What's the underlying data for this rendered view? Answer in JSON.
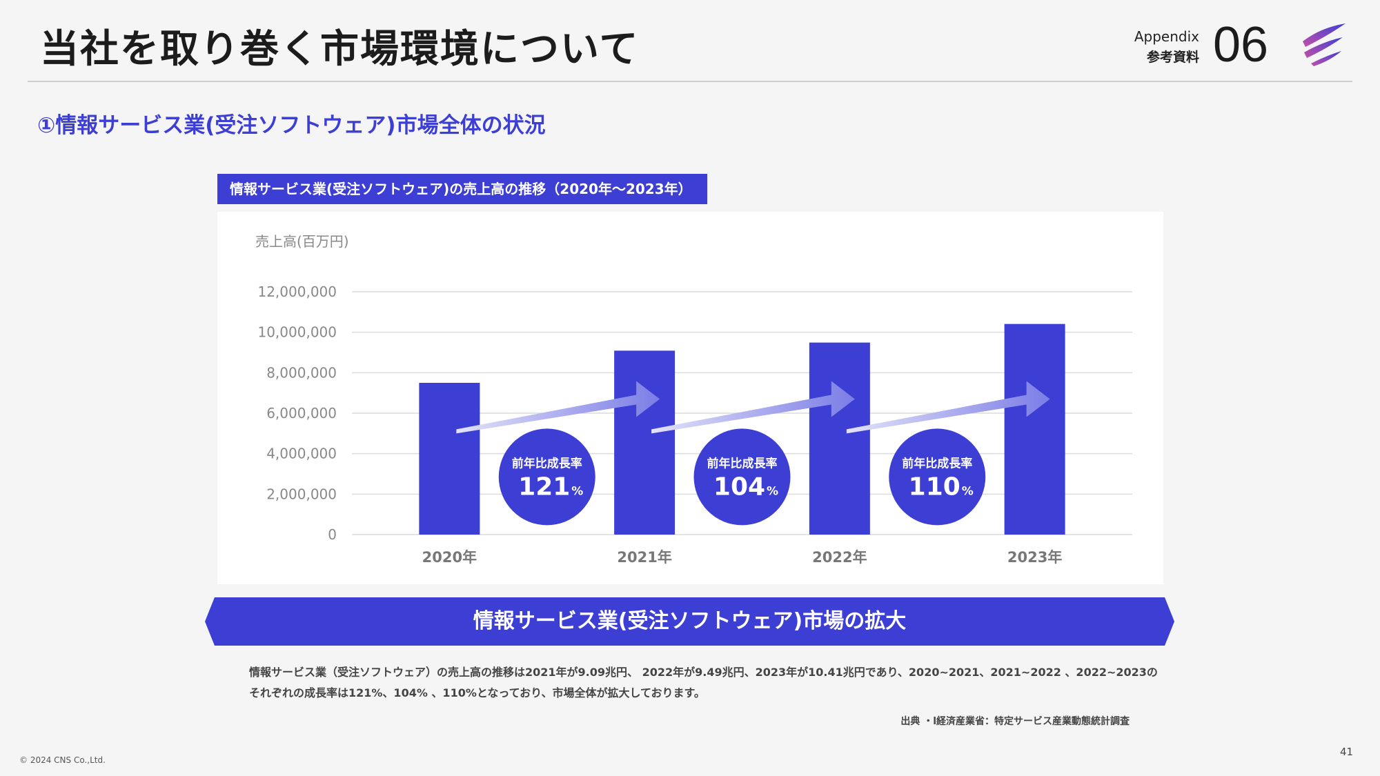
{
  "header": {
    "title": "当社を取り巻く市場環境について",
    "appendix_label": "Appendix",
    "appendix_sub": "参考資料",
    "section_number": "06"
  },
  "subtitle": "①情報サービス業(受注ソフトウェア)市場全体の状況",
  "chart_label": "情報サービス業(受注ソフトウェア)の売上高の推移（2020年〜2023年）",
  "chart_data": {
    "type": "bar",
    "ylabel": "売上高(百万円)",
    "categories": [
      "2020年",
      "2021年",
      "2022年",
      "2023年"
    ],
    "values": [
      7500000,
      9090000,
      9490000,
      10410000
    ],
    "ylim": [
      0,
      12000000
    ],
    "yticks": [
      0,
      2000000,
      4000000,
      6000000,
      8000000,
      10000000,
      12000000
    ],
    "ytick_labels": [
      "0",
      "2,000,000",
      "4,000,000",
      "6,000,000",
      "8,000,000",
      "10,000,000",
      "12,000,000"
    ],
    "grid": true,
    "bar_color": "#3d3fd4",
    "growth": [
      {
        "label": "前年比成長率",
        "value": "121",
        "unit": "%"
      },
      {
        "label": "前年比成長率",
        "value": "104",
        "unit": "%"
      },
      {
        "label": "前年比成長率",
        "value": "110",
        "unit": "%"
      }
    ]
  },
  "banner": "情報サービス業(受注ソフトウェア)市場の拡大",
  "description": [
    "情報サービス業（受注ソフトウェア）の売上高の推移は2021年が9.09兆円、 2022年が9.49兆円、2023年が10.41兆円であり、2020~2021、2021~2022 、2022~2023の",
    "それぞれの成長率は121%、104% 、110%となっており、市場全体が拡大しております。"
  ],
  "source": "出典 ・l経済産業省：特定サービス産業動態統計調査",
  "footer": {
    "copyright": "© 2024 CNS Co.,Ltd.",
    "slide_number": "41"
  },
  "colors": {
    "accent": "#3d3fd4",
    "background": "#f5f5f5"
  }
}
